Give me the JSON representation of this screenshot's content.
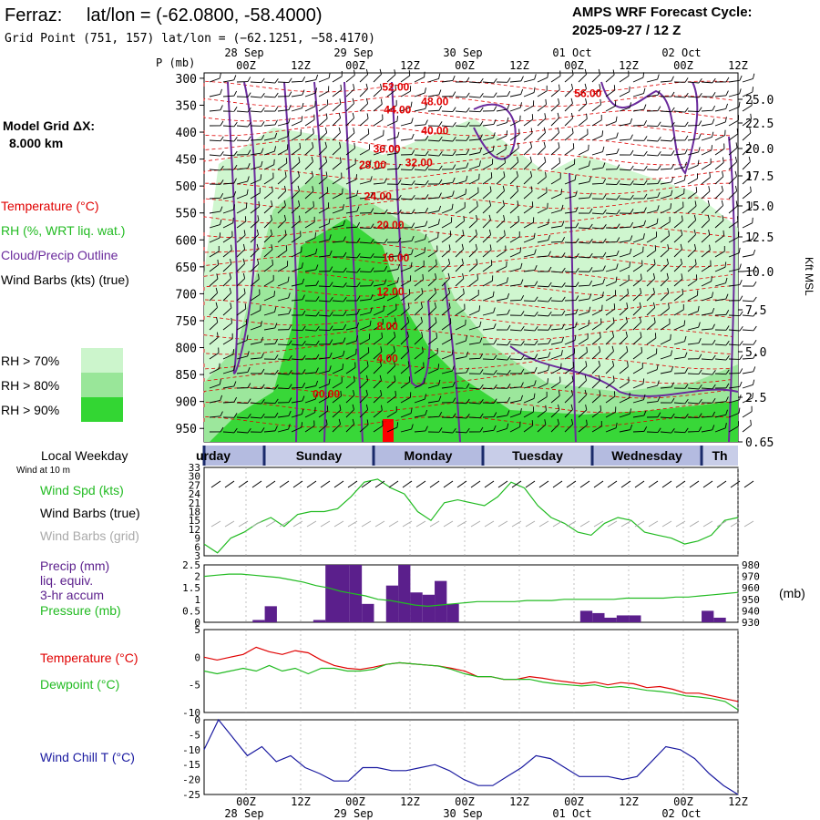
{
  "header": {
    "station": "Ferraz:",
    "latlon_label": "lat/lon = (-62.0800, -58.4000)",
    "grid_point": "Grid Point (751, 157) lat/lon = (−62.1251, −58.4170)",
    "cycle_title": "AMPS WRF Forecast Cycle:",
    "cycle_date": "2025-09-27 / 12  Z"
  },
  "left_legend": {
    "model_grid": "Model Grid ΔX:",
    "grid_spacing": "8.000 km",
    "temperature": "Temperature (°C)",
    "rh": "RH (%, WRT liq. wat.)",
    "cloud": "Cloud/Precip Outline",
    "wind": "Wind Barbs (kts) (true)",
    "rh_levels": [
      "RH > 70%",
      "RH > 80%",
      "RH > 90%"
    ],
    "rh_colors": [
      "#ccf5cc",
      "#99e699",
      "#33d633"
    ]
  },
  "time_axis": {
    "top_dates": [
      "28 Sep",
      "29 Sep",
      "30 Sep",
      "01 Oct",
      "02 Oct"
    ],
    "hour_labels": [
      "00Z",
      "12Z",
      "00Z",
      "12Z",
      "00Z",
      "12Z",
      "00Z",
      "12Z",
      "00Z",
      "12Z"
    ],
    "bottom_dates": [
      "28 Sep",
      "29 Sep",
      "30 Sep",
      "01 Oct",
      "02 Oct"
    ],
    "p_label": "P (mb)"
  },
  "weekdays": {
    "title": "Local Weekday",
    "wind_note": "Wind at 10 m",
    "days": [
      "urday",
      "Sunday",
      "Monday",
      "Tuesday",
      "Wednesday",
      "Th"
    ]
  },
  "colors": {
    "temp": "#e00000",
    "cloud": "#6a2a9c",
    "wind_green": "#22bb22",
    "precip": "#5b1f8c",
    "windchill": "#1a1aa0",
    "dewpoint": "#22bb22",
    "grey_barbs": "#aaaaaa"
  },
  "chart_data": [
    {
      "type": "heatmap",
      "title": "Time-height cross section",
      "ylabel": "P (mb)",
      "y2label": "Kft MSL",
      "pressure_ticks": [
        300,
        350,
        400,
        450,
        500,
        550,
        600,
        650,
        700,
        750,
        800,
        850,
        900,
        950
      ],
      "height_ticks": [
        "25.0",
        "22.5",
        "20.0",
        "17.5",
        "15.0",
        "12.5",
        "10.0",
        "7.5",
        "5.0",
        "2.5",
        "0.65"
      ],
      "isotherm_labels": [
        {
          "label": "52.00",
          "t": 9.0,
          "p": 323
        },
        {
          "label": "48.00",
          "t": 11.2,
          "p": 350
        },
        {
          "label": "44.00",
          "t": 9.1,
          "p": 365
        },
        {
          "label": "40.00",
          "t": 11.2,
          "p": 404
        },
        {
          "label": "36.00",
          "t": 8.5,
          "p": 438
        },
        {
          "label": "32.00",
          "t": 10.3,
          "p": 463
        },
        {
          "label": "28.00",
          "t": 7.7,
          "p": 468
        },
        {
          "label": "24.00",
          "t": 8.0,
          "p": 526
        },
        {
          "label": "20.00",
          "t": 8.7,
          "p": 579
        },
        {
          "label": "56.00",
          "t": 19.8,
          "p": 335
        },
        {
          "label": "16.00",
          "t": 9.0,
          "p": 640
        },
        {
          "label": "12.00",
          "t": 8.7,
          "p": 703
        },
        {
          "label": "8.00",
          "t": 8.7,
          "p": 767
        },
        {
          "label": "4.00",
          "t": 8.7,
          "p": 827
        },
        {
          "label": "00.00",
          "t": 5.1,
          "p": 893
        }
      ]
    },
    {
      "type": "line",
      "title": "Wind Spd (kts)",
      "legend": [
        "Wind Spd (kts)",
        "Wind Barbs (true)",
        "Wind Barbs (grid)"
      ],
      "ylim": [
        3,
        33
      ],
      "yticks": [
        3,
        6,
        9,
        12,
        15,
        18,
        21,
        24,
        27,
        30,
        33
      ],
      "x": [
        0,
        1,
        2,
        3,
        4,
        5,
        6,
        7,
        8,
        9,
        10,
        11,
        12,
        13,
        14,
        15,
        16,
        17,
        18,
        19,
        20,
        21,
        22,
        23,
        24,
        25,
        26,
        27,
        28,
        29,
        30,
        31,
        32,
        33,
        34,
        35,
        36,
        37,
        38,
        39,
        40
      ],
      "values": [
        7,
        4,
        9,
        11,
        14,
        16,
        13,
        17,
        18,
        18,
        19,
        23,
        28,
        29,
        26,
        24,
        18,
        15,
        21,
        22,
        21,
        20,
        23,
        28,
        26,
        20,
        16,
        14,
        11,
        10,
        14,
        16,
        15,
        11,
        10,
        9,
        7,
        8,
        10,
        15,
        16
      ]
    },
    {
      "type": "bar",
      "title": "Precip (mm) liq. equiv. 3-hr accum / Pressure (mb)",
      "legend": [
        "Precip (mm)",
        "liq. equiv.",
        "3-hr accum",
        "Pressure (mb)"
      ],
      "y2unit": "(mb)",
      "ylim": [
        0,
        2.5
      ],
      "yticks": [
        0.0,
        0.5,
        1.0,
        1.5,
        2.0,
        2.5
      ],
      "y2lim": [
        930,
        980
      ],
      "y2ticks": [
        930,
        940,
        950,
        960,
        970,
        980
      ],
      "precip": [
        0,
        0,
        0,
        0,
        0.1,
        0.7,
        0,
        0,
        0,
        0.1,
        2.5,
        2.5,
        2.5,
        0.8,
        0,
        1.6,
        2.5,
        1.3,
        1.2,
        1.8,
        0.8,
        0,
        0,
        0,
        0,
        0,
        0,
        0,
        0,
        0,
        0,
        0.5,
        0.4,
        0.2,
        0.3,
        0.3,
        0,
        0,
        0,
        0,
        0,
        0.5,
        0.2,
        0
      ],
      "pressure": [
        970,
        971,
        972,
        972,
        971,
        970,
        969,
        967,
        965,
        962,
        960,
        957,
        955,
        953,
        950,
        949,
        947,
        945,
        944,
        945,
        946,
        947,
        948,
        948,
        948,
        948,
        949,
        949,
        949,
        950,
        950,
        950,
        950,
        950,
        951,
        951,
        951,
        951,
        952,
        952,
        953,
        954,
        955,
        956
      ]
    },
    {
      "type": "line",
      "title": "Temperature / Dewpoint",
      "legend": [
        "Temperature (°C)",
        "Dewpoint (°C)"
      ],
      "ylim": [
        -10,
        5
      ],
      "yticks": [
        5,
        0,
        -5,
        -10
      ],
      "series": [
        {
          "name": "Temperature (°C)",
          "values": [
            0,
            -0.5,
            0,
            0.5,
            1.8,
            1,
            0.5,
            1.2,
            0.8,
            -0.5,
            -1.5,
            -2,
            -2.2,
            -1.8,
            -1.3,
            -1,
            -1.2,
            -1.4,
            -1.6,
            -2,
            -2.5,
            -3.5,
            -3.5,
            -4,
            -4,
            -3.5,
            -3.8,
            -4.2,
            -4.5,
            -4.8,
            -4.5,
            -5,
            -4.6,
            -4.8,
            -5.5,
            -5.3,
            -5.8,
            -6.5,
            -6.5,
            -7,
            -7.5,
            -8
          ]
        },
        {
          "name": "Dewpoint (°C)",
          "values": [
            -2.5,
            -3,
            -2.5,
            -2,
            -2.5,
            -1.5,
            -2.5,
            -2,
            -3,
            -2,
            -2,
            -2.5,
            -2.5,
            -2.2,
            -1.3,
            -1,
            -1.2,
            -1.4,
            -1.6,
            -2.2,
            -3,
            -3.5,
            -3.5,
            -4,
            -4,
            -4,
            -4.5,
            -4.8,
            -5,
            -5.2,
            -5,
            -5.5,
            -5.3,
            -5.6,
            -6,
            -6.2,
            -6.5,
            -7,
            -7.2,
            -7.5,
            -8,
            -9.5
          ]
        }
      ]
    },
    {
      "type": "line",
      "title": "Wind Chill T (°C)",
      "legend": [
        "Wind Chill T (°C)"
      ],
      "ylim": [
        -25,
        0
      ],
      "yticks": [
        0,
        -5,
        -10,
        -15,
        -20,
        -25
      ],
      "values": [
        -10,
        0,
        -6,
        -12,
        -9,
        -14,
        -12,
        -16,
        -18,
        -20.5,
        -20.5,
        -16,
        -16,
        -17,
        -17,
        -16,
        -15,
        -17,
        -20,
        -22,
        -22,
        -19,
        -16,
        -12,
        -13,
        -16,
        -19,
        -19,
        -19,
        -20,
        -19,
        -14,
        -9,
        -10,
        -13,
        -18,
        -22,
        -25
      ]
    }
  ]
}
